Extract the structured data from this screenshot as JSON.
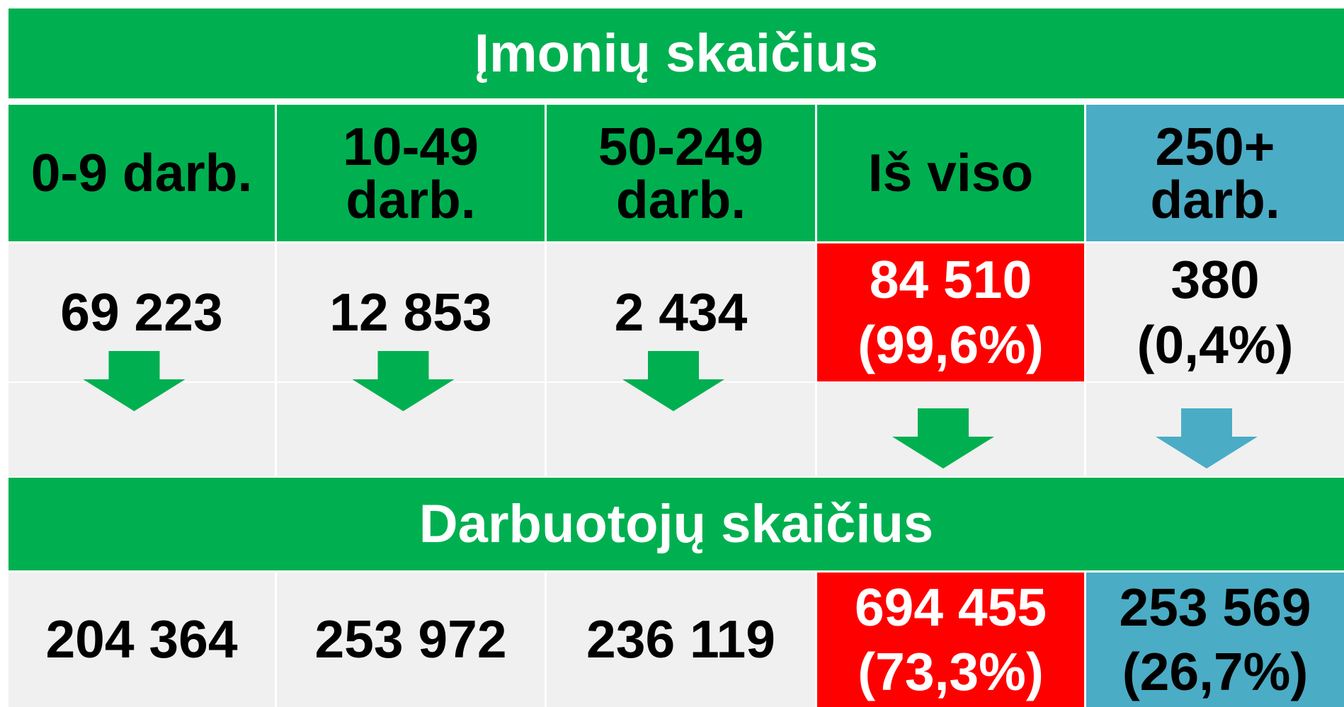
{
  "top_title": "Įmonių skaičius",
  "columns": [
    {
      "header": "0-9 darb.",
      "companies": {
        "value": "69 223"
      },
      "employees": {
        "value": "204 364"
      }
    },
    {
      "header": "10-49 darb.",
      "companies": {
        "value": "12 853"
      },
      "employees": {
        "value": "253 972"
      }
    },
    {
      "header": "50-249 darb.",
      "companies": {
        "value": "2 434"
      },
      "employees": {
        "value": "236 119"
      }
    },
    {
      "header": "Iš viso",
      "companies": {
        "value": "84 510",
        "share": "(99,6%)"
      },
      "employees": {
        "value": "694 455",
        "share": "(73,3%)"
      }
    },
    {
      "header": "250+ darb.",
      "companies": {
        "value": "380",
        "share": "(0,4%)"
      },
      "employees": {
        "value": "253 569",
        "share": "(26,7%)"
      }
    }
  ],
  "bottom_title": "Darbuotojų skaičius"
}
